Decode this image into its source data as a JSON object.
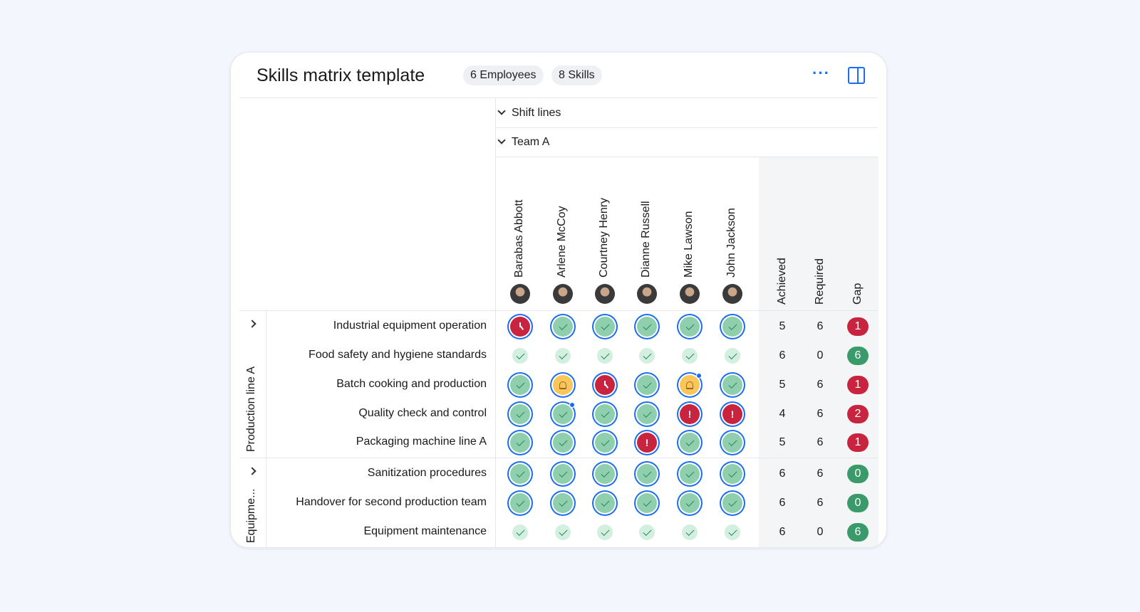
{
  "header": {
    "title": "Skills matrix template",
    "employees_chip": "6 Employees",
    "skills_chip": "8 Skills",
    "more_icon": "more-horizontal-icon",
    "panel_icon": "side-panel-icon"
  },
  "groups": {
    "level1": "Shift lines",
    "level2": "Team A"
  },
  "employees": [
    "Barabas Abbott",
    "Arlene McCoy",
    "Courtney Henry",
    "Dianne Russell",
    "Mike Lawson",
    "John Jackson"
  ],
  "summary_headers": {
    "achieved": "Achieved",
    "required": "Required",
    "gap": "Gap"
  },
  "colors": {
    "accent": "#1a6cf0",
    "red": "#c9243f",
    "green": "#3a9a6a",
    "yellow": "#f8c65a"
  },
  "skill_groups": [
    {
      "label": "Production line A",
      "skills": [
        {
          "name": "Industrial equipment operation",
          "cells": [
            "clock",
            "check",
            "check",
            "check",
            "check",
            "check"
          ],
          "dots": [],
          "achieved": "5",
          "required": "6",
          "gap": "1",
          "gap_status": "red"
        },
        {
          "name": "Food safety and hygiene standards",
          "cells": [
            "light",
            "light",
            "light",
            "light",
            "light",
            "light"
          ],
          "dots": [],
          "achieved": "6",
          "required": "0",
          "gap": "6",
          "gap_status": "green"
        },
        {
          "name": "Batch cooking and production",
          "cells": [
            "check",
            "bell",
            "clock",
            "check",
            "bell",
            "check"
          ],
          "dots": [
            4
          ],
          "achieved": "5",
          "required": "6",
          "gap": "1",
          "gap_status": "red"
        },
        {
          "name": "Quality check and control",
          "cells": [
            "check",
            "check",
            "check",
            "check",
            "alert",
            "alert"
          ],
          "dots": [
            1
          ],
          "achieved": "4",
          "required": "6",
          "gap": "2",
          "gap_status": "red"
        },
        {
          "name": "Packaging machine line A",
          "cells": [
            "check",
            "check",
            "check",
            "alert",
            "check",
            "check"
          ],
          "dots": [],
          "achieved": "5",
          "required": "6",
          "gap": "1",
          "gap_status": "red"
        }
      ]
    },
    {
      "label": "Equipme...",
      "skills": [
        {
          "name": "Sanitization procedures",
          "cells": [
            "check",
            "check",
            "check",
            "check",
            "check",
            "check"
          ],
          "dots": [],
          "achieved": "6",
          "required": "6",
          "gap": "0",
          "gap_status": "green"
        },
        {
          "name": "Handover for second production team",
          "cells": [
            "check",
            "check",
            "check",
            "check",
            "check",
            "check"
          ],
          "dots": [],
          "achieved": "6",
          "required": "6",
          "gap": "0",
          "gap_status": "green"
        },
        {
          "name": "Equipment maintenance",
          "cells": [
            "light",
            "light",
            "light",
            "light",
            "light",
            "light"
          ],
          "dots": [],
          "achieved": "6",
          "required": "0",
          "gap": "6",
          "gap_status": "green"
        }
      ]
    }
  ]
}
